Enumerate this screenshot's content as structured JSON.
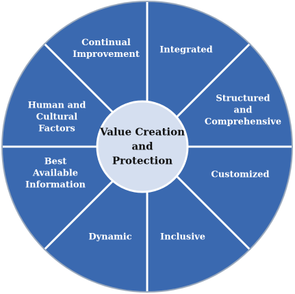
{
  "diagram": {
    "center_label": "Value Creation\nand\nProtection",
    "segments": [
      {
        "label": "Integrated"
      },
      {
        "label": "Structured\nand\nComprehensive"
      },
      {
        "label": "Customized"
      },
      {
        "label": "Inclusive"
      },
      {
        "label": "Dynamic"
      },
      {
        "label": "Best\nAvailable\nInformation"
      },
      {
        "label": "Human and\nCultural\nFactors"
      },
      {
        "label": "Continual\nImprovement"
      }
    ],
    "colors": {
      "segment_fill": "#3a69b0",
      "divider": "#ffffff",
      "outer_ring": "#9aa9bd",
      "hub_fill": "#d5dff0",
      "segment_text": "#ffffff",
      "center_text": "#111111"
    }
  }
}
